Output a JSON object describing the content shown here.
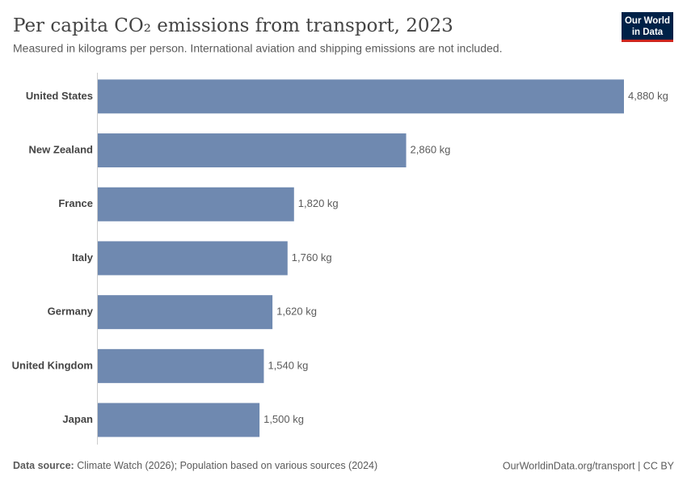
{
  "logo": [
    "Our World",
    "in Data"
  ],
  "chart_data": {
    "type": "bar",
    "orientation": "horizontal",
    "title": "Per capita CO₂ emissions from transport, 2023",
    "subtitle": "Measured in kilograms per person. International aviation and shipping emissions are not included.",
    "categories": [
      "United States",
      "New Zealand",
      "France",
      "Italy",
      "Germany",
      "United Kingdom",
      "Japan"
    ],
    "values": [
      4880,
      2860,
      1820,
      1760,
      1620,
      1540,
      1500
    ],
    "value_labels": [
      "4,880 kg",
      "2,860 kg",
      "1,820 kg",
      "1,760 kg",
      "1,620 kg",
      "1,540 kg",
      "1,500 kg"
    ],
    "color": "#6f89b0",
    "source_label": "Data source:",
    "source": "Climate Watch (2026); Population based on various sources (2024)",
    "footer_right": "OurWorldinData.org/transport | CC BY"
  }
}
